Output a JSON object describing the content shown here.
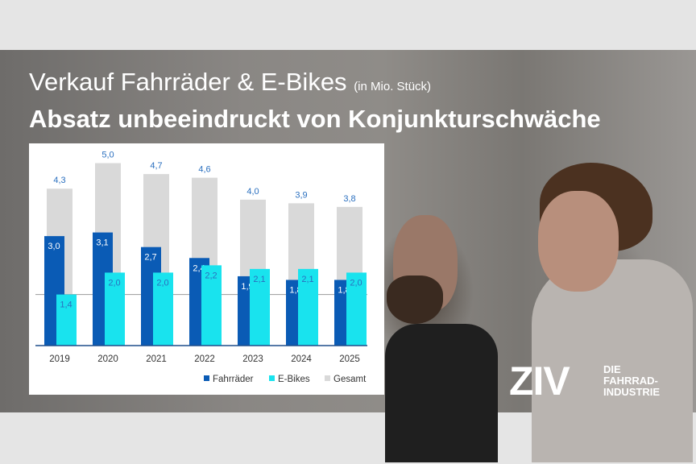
{
  "header": {
    "title": "Verkauf Fahrräder & E-Bikes",
    "title_unit": "(in Mio. Stück)",
    "subtitle": "Absatz unbeeindruckt von Konjunkturschwäche"
  },
  "logo": {
    "name": "ZIV",
    "tagline_lines": [
      "DIE",
      "FAHRRAD-",
      "INDUSTRIE"
    ]
  },
  "chart_data": {
    "type": "bar",
    "title": "Verkauf Fahrräder & E-Bikes (in Mio. Stück)",
    "categories": [
      "2019",
      "2020",
      "2021",
      "2022",
      "2023",
      "2024",
      "2025"
    ],
    "series": [
      {
        "name": "Fahrräder",
        "values": [
          3.0,
          3.1,
          2.7,
          2.4,
          1.9,
          1.8,
          1.8
        ],
        "labels": [
          "3,0",
          "3,1",
          "2,7",
          "2,4",
          "1,9",
          "1,8",
          "1,8"
        ],
        "color": "#0a5bb5"
      },
      {
        "name": "E-Bikes",
        "values": [
          1.4,
          2.0,
          2.0,
          2.2,
          2.1,
          2.1,
          2.0
        ],
        "labels": [
          "1,4",
          "2,0",
          "2,0",
          "2,2",
          "2,1",
          "2,1",
          "2,0"
        ],
        "color": "#19e3ee"
      },
      {
        "name": "Gesamt",
        "values": [
          4.3,
          5.0,
          4.7,
          4.6,
          4.0,
          3.9,
          3.8
        ],
        "labels": [
          "4,3",
          "5,0",
          "4,7",
          "4,6",
          "4,0",
          "3,9",
          "3,8"
        ],
        "color": "#d9d9d9"
      }
    ],
    "reference_line": 1.4,
    "ylim": [
      0,
      5.3
    ],
    "grid": false,
    "legend": "bottom-right"
  }
}
